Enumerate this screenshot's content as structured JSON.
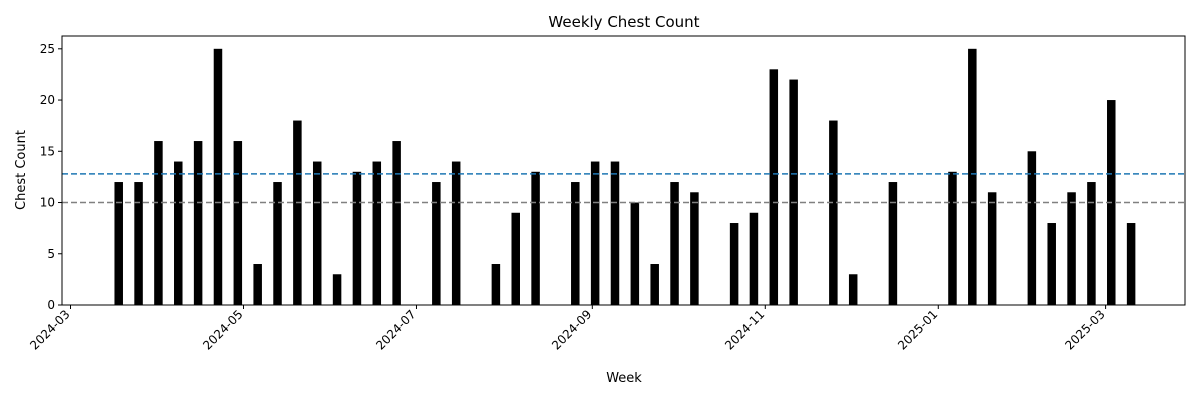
{
  "chart_data": {
    "type": "bar",
    "title": "Weekly Chest Count",
    "xlabel": "Week",
    "ylabel": "Chest Count",
    "xlim": [
      "2024-02-27",
      "2025-03-29"
    ],
    "ylim": [
      0,
      26.25
    ],
    "yticks": [
      0,
      5,
      10,
      15,
      20,
      25
    ],
    "xticks": [
      {
        "date": "2024-03-01",
        "label": "2024-03"
      },
      {
        "date": "2024-05-01",
        "label": "2024-05"
      },
      {
        "date": "2024-07-01",
        "label": "2024-07"
      },
      {
        "date": "2024-09-01",
        "label": "2024-09"
      },
      {
        "date": "2024-11-01",
        "label": "2024-11"
      },
      {
        "date": "2025-01-01",
        "label": "2025-01"
      },
      {
        "date": "2025-03-01",
        "label": "2025-03"
      }
    ],
    "bar_color": "#000000",
    "grid": false,
    "reference_lines": [
      {
        "y": 12.8,
        "color": "#1f77b4",
        "style": "dashed"
      },
      {
        "y": 10,
        "color": "#808080",
        "style": "dashed"
      }
    ],
    "x": [
      "2024-03-18",
      "2024-03-25",
      "2024-04-01",
      "2024-04-08",
      "2024-04-15",
      "2024-04-22",
      "2024-04-29",
      "2024-05-06",
      "2024-05-13",
      "2024-05-20",
      "2024-05-27",
      "2024-06-03",
      "2024-06-10",
      "2024-06-17",
      "2024-06-24",
      "2024-07-08",
      "2024-07-15",
      "2024-07-29",
      "2024-08-05",
      "2024-08-12",
      "2024-08-26",
      "2024-09-02",
      "2024-09-09",
      "2024-09-16",
      "2024-09-23",
      "2024-09-30",
      "2024-10-07",
      "2024-10-21",
      "2024-10-28",
      "2024-11-04",
      "2024-11-11",
      "2024-11-25",
      "2024-12-02",
      "2024-12-16",
      "2025-01-06",
      "2025-01-13",
      "2025-01-20",
      "2025-02-03",
      "2025-02-10",
      "2025-02-17",
      "2025-02-24",
      "2025-03-03",
      "2025-03-10"
    ],
    "values": [
      12,
      12,
      16,
      14,
      16,
      25,
      16,
      4,
      12,
      18,
      14,
      3,
      13,
      14,
      16,
      12,
      14,
      4,
      9,
      13,
      12,
      14,
      14,
      10,
      4,
      12,
      11,
      8,
      9,
      23,
      22,
      18,
      3,
      12,
      13,
      25,
      11,
      15,
      8,
      11,
      12,
      20,
      8
    ]
  }
}
